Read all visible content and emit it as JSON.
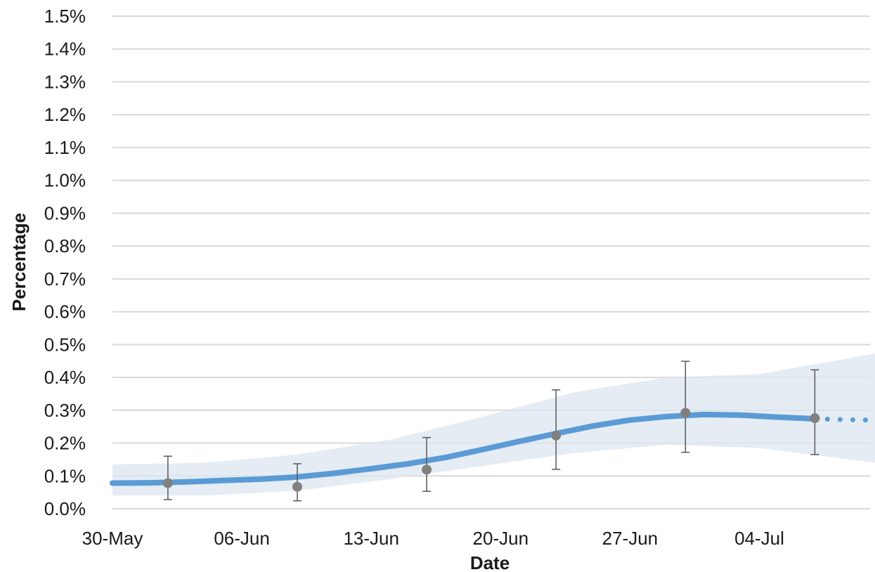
{
  "chart_data": {
    "type": "line",
    "title": "",
    "xlabel": "Date",
    "ylabel": "Percentage",
    "x_axis": {
      "type": "date",
      "min": "2021-05-30",
      "max": "2021-07-11",
      "ticks": [
        {
          "date": "2021-05-30",
          "label": "30-May"
        },
        {
          "date": "2021-06-06",
          "label": "06-Jun"
        },
        {
          "date": "2021-06-13",
          "label": "13-Jun"
        },
        {
          "date": "2021-06-20",
          "label": "20-Jun"
        },
        {
          "date": "2021-06-27",
          "label": "27-Jun"
        },
        {
          "date": "2021-07-04",
          "label": "04-Jul"
        }
      ]
    },
    "y_axis": {
      "min": 0.0,
      "max": 1.5,
      "step": 0.1,
      "unit": "%",
      "tick_labels": [
        "0.0%",
        "0.1%",
        "0.2%",
        "0.3%",
        "0.4%",
        "0.5%",
        "0.6%",
        "0.7%",
        "0.8%",
        "0.9%",
        "1.0%",
        "1.1%",
        "1.2%",
        "1.3%",
        "1.4%",
        "1.5%"
      ]
    },
    "grid": true,
    "legend": "none",
    "colors": {
      "modelled_line": "#5b9bd5",
      "credible_band": "#dce6f0",
      "estimate_point": "#808080",
      "error_bar": "#595959",
      "gridline": "#d9d9d9"
    },
    "series": [
      {
        "kind": "modelled-estimate",
        "style": "solid-then-dotted",
        "points": [
          {
            "date": "2021-05-30",
            "value": 0.078
          },
          {
            "date": "2021-06-01",
            "value": 0.079
          },
          {
            "date": "2021-06-03",
            "value": 0.082
          },
          {
            "date": "2021-06-05",
            "value": 0.086
          },
          {
            "date": "2021-06-07",
            "value": 0.09
          },
          {
            "date": "2021-06-09",
            "value": 0.097
          },
          {
            "date": "2021-06-11",
            "value": 0.108
          },
          {
            "date": "2021-06-13",
            "value": 0.122
          },
          {
            "date": "2021-06-15",
            "value": 0.137
          },
          {
            "date": "2021-06-17",
            "value": 0.156
          },
          {
            "date": "2021-06-19",
            "value": 0.18
          },
          {
            "date": "2021-06-21",
            "value": 0.205
          },
          {
            "date": "2021-06-23",
            "value": 0.229
          },
          {
            "date": "2021-06-25",
            "value": 0.252
          },
          {
            "date": "2021-06-27",
            "value": 0.27
          },
          {
            "date": "2021-06-29",
            "value": 0.281
          },
          {
            "date": "2021-07-01",
            "value": 0.287
          },
          {
            "date": "2021-07-03",
            "value": 0.285
          },
          {
            "date": "2021-07-05",
            "value": 0.279
          },
          {
            "date": "2021-07-07",
            "value": 0.274
          },
          {
            "date": "2021-07-09",
            "value": 0.271
          },
          {
            "date": "2021-07-11",
            "value": 0.269
          }
        ],
        "dotted_from": "2021-07-07"
      },
      {
        "kind": "credible-interval-band",
        "lower": [
          {
            "date": "2021-05-30",
            "value": 0.04
          },
          {
            "date": "2021-06-04",
            "value": 0.04
          },
          {
            "date": "2021-06-09",
            "value": 0.055
          },
          {
            "date": "2021-06-14",
            "value": 0.09
          },
          {
            "date": "2021-06-19",
            "value": 0.13
          },
          {
            "date": "2021-06-24",
            "value": 0.17
          },
          {
            "date": "2021-06-29",
            "value": 0.195
          },
          {
            "date": "2021-07-04",
            "value": 0.185
          },
          {
            "date": "2021-07-11",
            "value": 0.135
          }
        ],
        "upper": [
          {
            "date": "2021-05-30",
            "value": 0.135
          },
          {
            "date": "2021-06-04",
            "value": 0.14
          },
          {
            "date": "2021-06-09",
            "value": 0.165
          },
          {
            "date": "2021-06-14",
            "value": 0.21
          },
          {
            "date": "2021-06-19",
            "value": 0.28
          },
          {
            "date": "2021-06-24",
            "value": 0.355
          },
          {
            "date": "2021-06-29",
            "value": 0.4
          },
          {
            "date": "2021-07-04",
            "value": 0.41
          },
          {
            "date": "2021-07-11",
            "value": 0.48
          }
        ]
      },
      {
        "kind": "official-estimate",
        "points": [
          {
            "date": "2021-06-02",
            "value": 0.078,
            "lower": 0.028,
            "upper": 0.16
          },
          {
            "date": "2021-06-09",
            "value": 0.067,
            "lower": 0.024,
            "upper": 0.137
          },
          {
            "date": "2021-06-16",
            "value": 0.119,
            "lower": 0.053,
            "upper": 0.217
          },
          {
            "date": "2021-06-23",
            "value": 0.223,
            "lower": 0.12,
            "upper": 0.362
          },
          {
            "date": "2021-06-30",
            "value": 0.292,
            "lower": 0.172,
            "upper": 0.449
          },
          {
            "date": "2021-07-07",
            "value": 0.276,
            "lower": 0.165,
            "upper": 0.423
          }
        ]
      }
    ]
  }
}
